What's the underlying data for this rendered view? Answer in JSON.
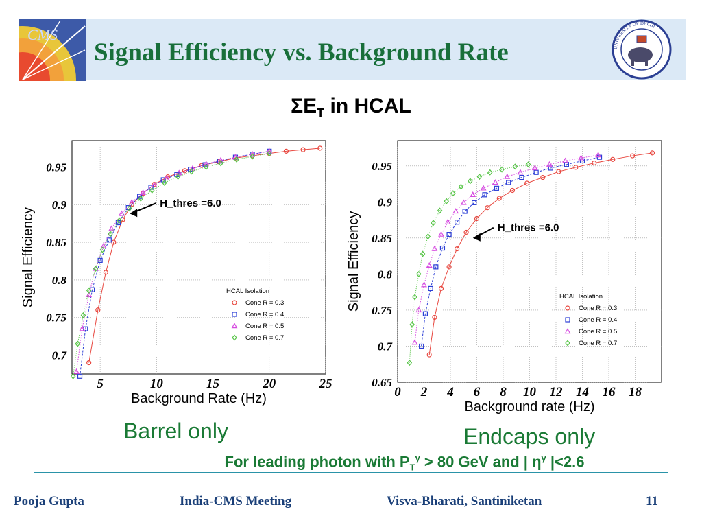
{
  "title": "Signal Efficiency vs. Background Rate",
  "subtitle": {
    "sigma": "ΣE",
    "sub": "T",
    "rest": " in HCAL"
  },
  "logos": {
    "left": "CMS",
    "right": "UNIVERSITY OF DELHI"
  },
  "captions": {
    "barrel": "Barrel only",
    "endcap": "Endcaps only"
  },
  "note": {
    "text1": "For leading photon with P",
    "sub": "T",
    "sup1": "γ",
    "text2": " > 80 GeV and | η",
    "sup2": "γ",
    "text3": " |<2.6"
  },
  "footer": {
    "author": "Pooja Gupta",
    "meeting": "India-CMS Meeting",
    "venue": "Visva-Bharati, Santiniketan",
    "page": "11"
  },
  "colors": {
    "title": "#186f3a",
    "caption": "#1a7a35",
    "footer": "#1a3f78",
    "band": "#dbe9f6",
    "rule": "#2a93a8",
    "cone03": "#e8473f",
    "cone04": "#2b3ed6",
    "cone05": "#d64ce0",
    "cone07": "#55c445"
  },
  "chart_data": [
    {
      "type": "line",
      "xlabel": "Background Rate (Hz)",
      "ylabel": "Signal Efficiency",
      "xlim": [
        2.5,
        25
      ],
      "ylim": [
        0.675,
        0.985
      ],
      "xticks": [
        5,
        10,
        15,
        20,
        25
      ],
      "yticks": [
        0.7,
        0.75,
        0.8,
        0.85,
        0.9,
        0.95
      ],
      "grid": true,
      "legend_title": "HCAL Isolation",
      "legend_position": "bottom-right",
      "annotation": "H_thres =6.0",
      "annotation_target": [
        7.5,
        0.89
      ],
      "series": [
        {
          "name": "Cone R = 0.3",
          "marker": "circle",
          "x": [
            4.0,
            4.8,
            5.5,
            6.2,
            7.0,
            7.8,
            8.8,
            9.8,
            11.0,
            12.5,
            14.0,
            15.5,
            17.0,
            18.5,
            20.0,
            21.5,
            23.0,
            24.5
          ],
          "y": [
            0.69,
            0.76,
            0.81,
            0.85,
            0.88,
            0.9,
            0.915,
            0.927,
            0.937,
            0.945,
            0.952,
            0.957,
            0.962,
            0.965,
            0.968,
            0.971,
            0.973,
            0.975
          ]
        },
        {
          "name": "Cone R = 0.4",
          "marker": "square",
          "x": [
            3.2,
            3.7,
            4.3,
            5.0,
            5.8,
            6.6,
            7.5,
            8.5,
            9.5,
            10.6,
            11.8,
            13.0,
            14.3,
            15.6,
            17.0,
            18.5,
            20.0
          ],
          "y": [
            0.672,
            0.735,
            0.787,
            0.826,
            0.853,
            0.876,
            0.896,
            0.911,
            0.923,
            0.933,
            0.94,
            0.947,
            0.953,
            0.958,
            0.963,
            0.967,
            0.971
          ]
        },
        {
          "name": "Cone R = 0.5",
          "marker": "triangle",
          "x": [
            2.9,
            3.4,
            4.0,
            4.6,
            5.3,
            6.0,
            6.9,
            7.8,
            8.8,
            9.8,
            10.9,
            12.0,
            13.2,
            14.4,
            15.7,
            17.0,
            18.5,
            20.0
          ],
          "y": [
            0.678,
            0.735,
            0.78,
            0.815,
            0.845,
            0.868,
            0.888,
            0.903,
            0.916,
            0.926,
            0.935,
            0.942,
            0.948,
            0.954,
            0.959,
            0.963,
            0.967,
            0.971
          ]
        },
        {
          "name": "Cone R = 0.7",
          "marker": "diamond",
          "x": [
            2.6,
            3.0,
            3.5,
            4.0,
            4.6,
            5.2,
            5.9,
            6.7,
            7.6,
            8.6,
            9.6,
            10.7,
            11.9,
            13.1,
            14.4,
            15.7,
            17.1,
            18.5,
            20.0
          ],
          "y": [
            0.672,
            0.715,
            0.753,
            0.786,
            0.815,
            0.84,
            0.861,
            0.879,
            0.895,
            0.908,
            0.919,
            0.929,
            0.937,
            0.944,
            0.95,
            0.955,
            0.96,
            0.964,
            0.968
          ]
        }
      ]
    },
    {
      "type": "line",
      "xlabel": "Background rate (Hz)",
      "ylabel": "Signal Efficiency",
      "xlim": [
        0,
        20
      ],
      "ylim": [
        0.65,
        0.985
      ],
      "xticks": [
        0,
        2,
        4,
        6,
        8,
        10,
        12,
        14,
        16,
        18
      ],
      "yticks": [
        0.65,
        0.7,
        0.75,
        0.8,
        0.85,
        0.9,
        0.95
      ],
      "grid": true,
      "legend_title": "HCAL Isolation",
      "legend_position": "bottom-right",
      "annotation": "H_thres =6.0",
      "annotation_target": [
        5.6,
        0.852
      ],
      "series": [
        {
          "name": "Cone R = 0.3",
          "marker": "circle",
          "x": [
            2.4,
            2.8,
            3.3,
            3.9,
            4.5,
            5.2,
            6.0,
            6.8,
            7.7,
            8.7,
            9.8,
            11.0,
            12.2,
            13.5,
            14.9,
            16.3,
            17.8,
            19.3
          ],
          "y": [
            0.688,
            0.74,
            0.78,
            0.81,
            0.835,
            0.858,
            0.877,
            0.892,
            0.905,
            0.916,
            0.926,
            0.934,
            0.942,
            0.948,
            0.954,
            0.959,
            0.964,
            0.968
          ]
        },
        {
          "name": "Cone R = 0.4",
          "marker": "square",
          "x": [
            1.8,
            2.1,
            2.5,
            2.9,
            3.4,
            3.9,
            4.5,
            5.1,
            5.8,
            6.6,
            7.5,
            8.4,
            9.4,
            10.5,
            11.6,
            12.8,
            14.0,
            15.3
          ],
          "y": [
            0.7,
            0.745,
            0.78,
            0.81,
            0.836,
            0.855,
            0.872,
            0.887,
            0.899,
            0.91,
            0.919,
            0.927,
            0.934,
            0.941,
            0.947,
            0.952,
            0.957,
            0.962
          ]
        },
        {
          "name": "Cone R = 0.5",
          "marker": "triangle",
          "x": [
            1.3,
            1.6,
            2.0,
            2.4,
            2.8,
            3.3,
            3.8,
            4.4,
            5.0,
            5.7,
            6.5,
            7.4,
            8.3,
            9.3,
            10.4,
            11.5,
            12.7,
            13.9,
            15.2
          ],
          "y": [
            0.705,
            0.75,
            0.785,
            0.812,
            0.835,
            0.855,
            0.872,
            0.887,
            0.899,
            0.91,
            0.919,
            0.927,
            0.935,
            0.941,
            0.947,
            0.952,
            0.957,
            0.961,
            0.965
          ]
        },
        {
          "name": "Cone R = 0.7",
          "marker": "diamond",
          "x": [
            0.9,
            1.1,
            1.3,
            1.6,
            1.9,
            2.3,
            2.7,
            3.2,
            3.7,
            4.2,
            4.8,
            5.5,
            6.2,
            7.0,
            7.9,
            8.9,
            9.9
          ],
          "y": [
            0.677,
            0.73,
            0.768,
            0.8,
            0.828,
            0.852,
            0.871,
            0.888,
            0.901,
            0.912,
            0.921,
            0.929,
            0.935,
            0.941,
            0.945,
            0.949,
            0.952
          ]
        }
      ]
    }
  ]
}
